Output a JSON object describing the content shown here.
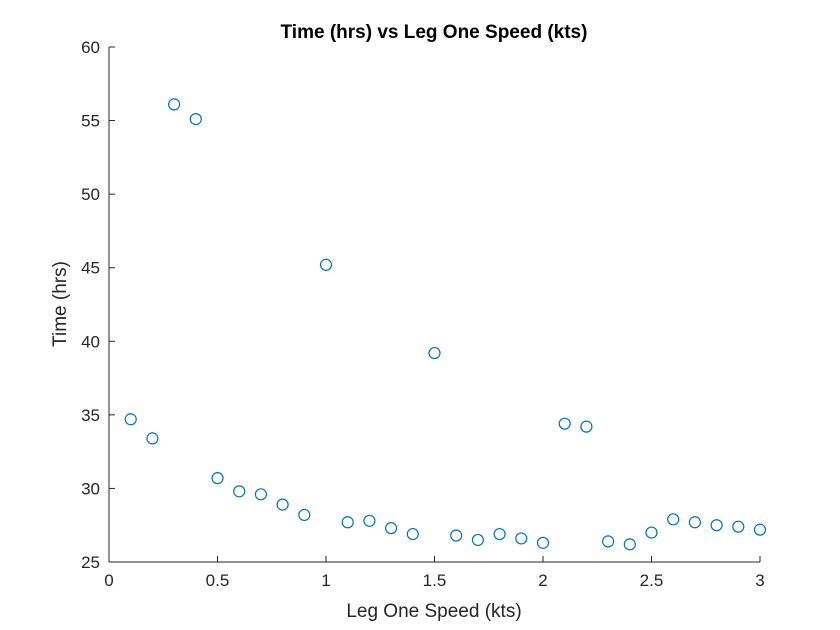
{
  "chart_data": {
    "type": "scatter",
    "title": "Time (hrs) vs Leg One Speed (kts)",
    "xlabel": "Leg One Speed (kts)",
    "ylabel": "Time (hrs)",
    "xlim": [
      0,
      3
    ],
    "ylim": [
      25,
      60
    ],
    "xticks": [
      0,
      0.5,
      1,
      1.5,
      2,
      2.5,
      3
    ],
    "xtick_labels": [
      "0",
      "0.5",
      "1",
      "1.5",
      "2",
      "2.5",
      "3"
    ],
    "yticks": [
      25,
      30,
      35,
      40,
      45,
      50,
      55,
      60
    ],
    "ytick_labels": [
      "25",
      "30",
      "35",
      "40",
      "45",
      "50",
      "55",
      "60"
    ],
    "grid": false,
    "marker": "open-circle",
    "marker_color": "#0072BD",
    "series": [
      {
        "x": [
          0.1,
          0.2,
          0.3,
          0.4,
          0.5,
          0.6,
          0.7,
          0.8,
          0.9,
          1.0,
          1.1,
          1.2,
          1.3,
          1.4,
          1.5,
          1.6,
          1.7,
          1.8,
          1.9,
          2.0,
          2.1,
          2.2,
          2.3,
          2.4,
          2.5,
          2.6,
          2.7,
          2.8,
          2.9,
          3.0
        ],
        "y": [
          34.7,
          33.4,
          56.1,
          55.1,
          30.7,
          29.8,
          29.6,
          28.9,
          28.2,
          45.2,
          27.7,
          27.8,
          27.3,
          26.9,
          39.2,
          26.8,
          26.5,
          26.9,
          26.6,
          26.3,
          34.4,
          34.2,
          26.4,
          26.2,
          27.0,
          27.9,
          27.7,
          27.5,
          27.4,
          27.2
        ]
      }
    ]
  }
}
